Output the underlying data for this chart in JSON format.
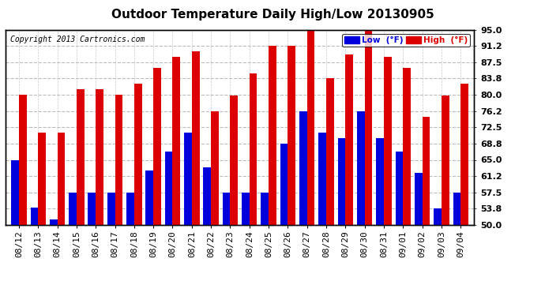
{
  "title": "Outdoor Temperature Daily High/Low 20130905",
  "copyright": "Copyright 2013 Cartronics.com",
  "ylabel_right_ticks": [
    50.0,
    53.8,
    57.5,
    61.2,
    65.0,
    68.8,
    72.5,
    76.2,
    80.0,
    83.8,
    87.5,
    91.2,
    95.0
  ],
  "dates": [
    "08/12",
    "08/13",
    "08/14",
    "08/15",
    "08/16",
    "08/17",
    "08/18",
    "08/19",
    "08/20",
    "08/21",
    "08/22",
    "08/23",
    "08/24",
    "08/25",
    "08/26",
    "08/27",
    "08/28",
    "08/29",
    "08/30",
    "08/31",
    "09/01",
    "09/02",
    "09/03",
    "09/04"
  ],
  "highs": [
    80.0,
    71.2,
    71.2,
    81.2,
    81.2,
    80.0,
    82.5,
    86.2,
    88.8,
    90.0,
    76.2,
    79.8,
    85.0,
    91.2,
    91.2,
    95.0,
    83.8,
    89.2,
    95.0,
    88.8,
    86.2,
    75.0,
    79.8,
    82.5
  ],
  "lows": [
    65.0,
    54.0,
    51.2,
    57.5,
    57.5,
    57.5,
    57.5,
    62.5,
    67.0,
    71.2,
    63.2,
    57.5,
    57.5,
    57.5,
    68.8,
    76.2,
    71.2,
    70.0,
    76.2,
    70.0,
    67.0,
    62.0,
    53.8,
    57.5
  ],
  "bar_color_low": "#0000dd",
  "bar_color_high": "#dd0000",
  "background_color": "#ffffff",
  "plot_bg_color": "#ffffff",
  "grid_color": "#bbbbbb",
  "title_fontsize": 11,
  "copyright_fontsize": 7,
  "tick_fontsize": 8,
  "ylim": [
    50.0,
    95.0
  ],
  "bar_width": 0.4,
  "bar_bottom": 50.0,
  "legend_low_label": "Low  (°F)",
  "legend_high_label": "High  (°F)"
}
